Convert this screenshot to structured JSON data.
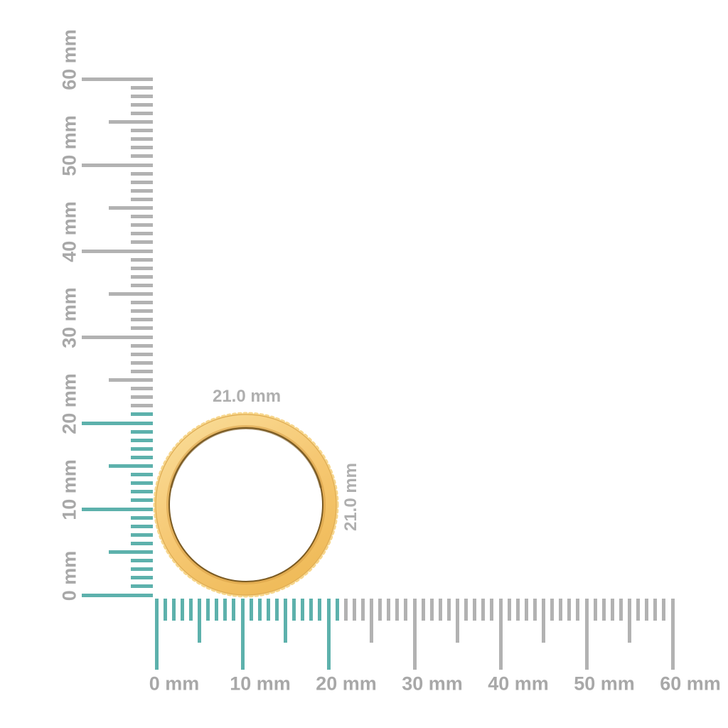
{
  "dimension_labels": {
    "width": "21.0 mm",
    "height": "21.0 mm",
    "color": "#AFAFAF"
  },
  "rulers": {
    "unit": "mm",
    "max_mm": 60,
    "highlight_up_to_mm": 21,
    "colors": {
      "highlight_tick": "#5DB1AC",
      "tick": "#B2B2B2",
      "label": "#A8A8A8"
    },
    "vertical": {
      "labels": [
        "0 mm",
        "10 mm",
        "20 mm",
        "30 mm",
        "40 mm",
        "50 mm",
        "60 mm"
      ]
    },
    "horizontal": {
      "labels": [
        "0 mm",
        "10 mm",
        "20 mm",
        "30 mm",
        "40 mm",
        "50 mm",
        "60 mm"
      ]
    }
  },
  "ring": {
    "outer_diameter_mm": 21.0,
    "colors": {
      "gold_light": "#F9DC97",
      "gold_mid": "#F6C873",
      "gold_deep": "#EFBA57",
      "gold_bump": "#F7D68C",
      "gold_edge": "#DFAC52",
      "gold_shade": "#D79F45",
      "inner_line": "#7A5A22"
    }
  }
}
